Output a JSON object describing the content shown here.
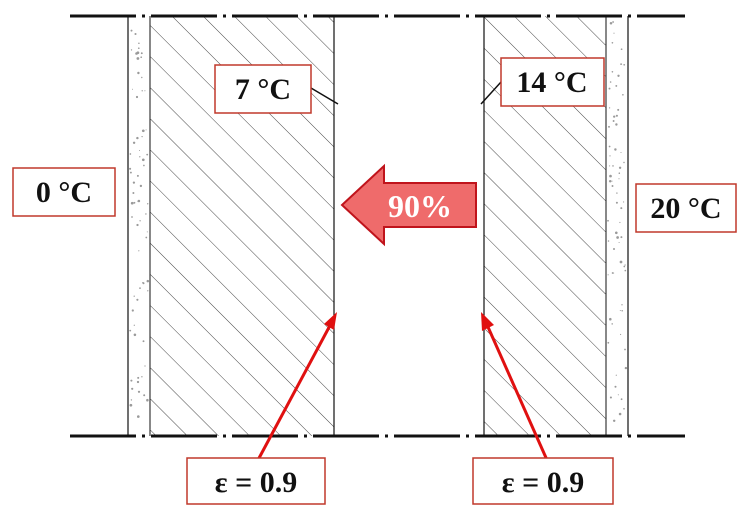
{
  "labels": {
    "outside_temp": "0 °C",
    "inside_temp": "20 °C",
    "left_cavity_surface_temp": "7 °C",
    "right_cavity_surface_temp": "14 °C",
    "flow_percent": "90%",
    "left_emissivity": "ε = 0.9",
    "right_emissivity": "ε = 0.9"
  },
  "colors": {
    "line": "#111111",
    "label_border": "#c0392b",
    "pointer": "#e01010",
    "arrow_fill": "#ef6b6b",
    "arrow_stroke": "#c0141c",
    "arrow_text": "#ffffff",
    "hatch": "#333333",
    "speckle": "#9a9a9a"
  }
}
